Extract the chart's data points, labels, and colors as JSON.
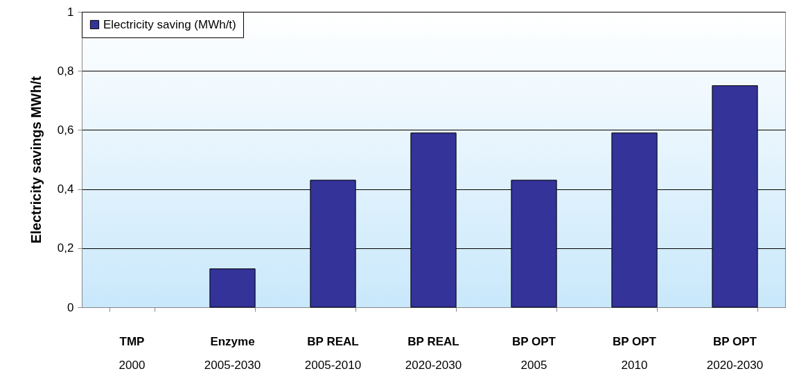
{
  "chart_data": {
    "type": "bar",
    "ylabel": "Electricity savings MWh/t",
    "categories": [
      "TMP\n2000",
      "Enzyme\n2005-2030",
      "BP REAL\n2005-2010",
      "BP REAL\n2020-2030",
      "BP OPT\n2005",
      "BP OPT\n2010",
      "BP OPT\n2020-2030"
    ],
    "series": [
      {
        "name": "Electricity saving (MWh/t)",
        "color": "#333399",
        "values": [
          0,
          0.13,
          0.43,
          0.59,
          0.43,
          0.59,
          0.75
        ]
      }
    ],
    "ylim": [
      0,
      1
    ],
    "yticks": [
      0,
      {
        "value": 0.2,
        "label": "0,2"
      },
      {
        "value": 0.4,
        "label": "0,4"
      },
      {
        "value": 0.6,
        "label": "0,6"
      },
      {
        "value": 0.8,
        "label": "0,8"
      },
      1
    ],
    "grid": "y",
    "legend": "top left"
  }
}
